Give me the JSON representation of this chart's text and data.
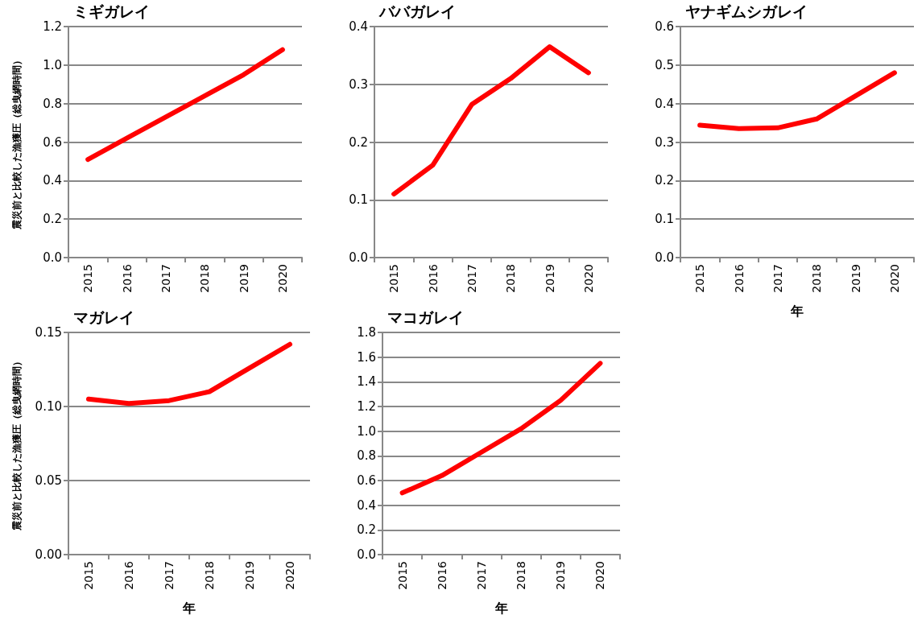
{
  "chart_data": [
    {
      "type": "line",
      "title": "ミギガレイ",
      "ylabel": "震災前と比較した漁獲圧（総曳網時間）",
      "categories": [
        "2015",
        "2016",
        "2017",
        "2018",
        "2019",
        "2020"
      ],
      "series": [
        {
          "color": "#ff0000",
          "values": [
            0.51,
            0.62,
            0.73,
            0.84,
            0.95,
            1.08
          ]
        }
      ],
      "ylim": [
        0,
        1.2
      ],
      "yticks": [
        {
          "value": 0,
          "label": "0.0"
        },
        {
          "value": 0.2,
          "label": "0.2"
        },
        {
          "value": 0.4,
          "label": "0.4"
        },
        {
          "value": 0.6,
          "label": "0.6"
        },
        {
          "value": 0.8,
          "label": "0.8"
        },
        {
          "value": 1,
          "label": "1.0"
        },
        {
          "value": 1.2,
          "label": "1.2"
        }
      ],
      "grid": "y",
      "marker": "none",
      "line_style": "solid"
    },
    {
      "type": "line",
      "title": "ババガレイ",
      "categories": [
        "2015",
        "2016",
        "2017",
        "2018",
        "2019",
        "2020"
      ],
      "series": [
        {
          "color": "#ff0000",
          "values": [
            0.11,
            0.16,
            0.265,
            0.31,
            0.365,
            0.32
          ]
        }
      ],
      "ylim": [
        0,
        0.4
      ],
      "yticks": [
        {
          "value": 0,
          "label": "0.0"
        },
        0.1,
        0.2,
        0.3,
        0.4
      ],
      "grid": "y",
      "marker": "none",
      "line_style": "solid"
    },
    {
      "type": "line",
      "title": "ヤナギムシガレイ",
      "xlabel": "年",
      "categories": [
        "2015",
        "2016",
        "2017",
        "2018",
        "2019",
        "2020"
      ],
      "series": [
        {
          "color": "#ff0000",
          "values": [
            0.344,
            0.335,
            0.337,
            0.36,
            0.42,
            0.48
          ]
        }
      ],
      "ylim": [
        0,
        0.6
      ],
      "yticks": [
        {
          "value": 0,
          "label": "0.0"
        },
        0.1,
        0.2,
        0.3,
        0.4,
        0.5,
        0.6
      ],
      "grid": "y",
      "marker": "none",
      "line_style": "solid"
    },
    {
      "type": "line",
      "title": "マガレイ",
      "xlabel": "年",
      "ylabel": "震災前と比較した漁獲圧（総曳網時間）",
      "categories": [
        "2015",
        "2016",
        "2017",
        "2018",
        "2019",
        "2020"
      ],
      "series": [
        {
          "color": "#ff0000",
          "values": [
            0.105,
            0.102,
            0.104,
            0.11,
            0.126,
            0.142
          ]
        }
      ],
      "ylim": [
        0,
        0.15
      ],
      "yticks": [
        {
          "value": 0,
          "label": "0.00"
        },
        0.05,
        {
          "value": 0.1,
          "label": "0.10"
        },
        0.15
      ],
      "grid": "y",
      "marker": "none",
      "line_style": "solid"
    },
    {
      "type": "line",
      "title": "マコガレイ",
      "xlabel": "年",
      "categories": [
        "2015",
        "2016",
        "2017",
        "2018",
        "2019",
        "2020"
      ],
      "series": [
        {
          "color": "#ff0000",
          "values": [
            0.5,
            0.64,
            0.83,
            1.02,
            1.25,
            1.55
          ]
        }
      ],
      "ylim": [
        0,
        1.8
      ],
      "yticks": [
        {
          "value": 0,
          "label": "0.0"
        },
        0.2,
        0.4,
        0.6,
        0.8,
        {
          "value": 1,
          "label": "1.0"
        },
        1.2,
        1.4,
        1.6,
        1.8
      ],
      "grid": "y",
      "marker": "none",
      "line_style": "solid"
    }
  ]
}
